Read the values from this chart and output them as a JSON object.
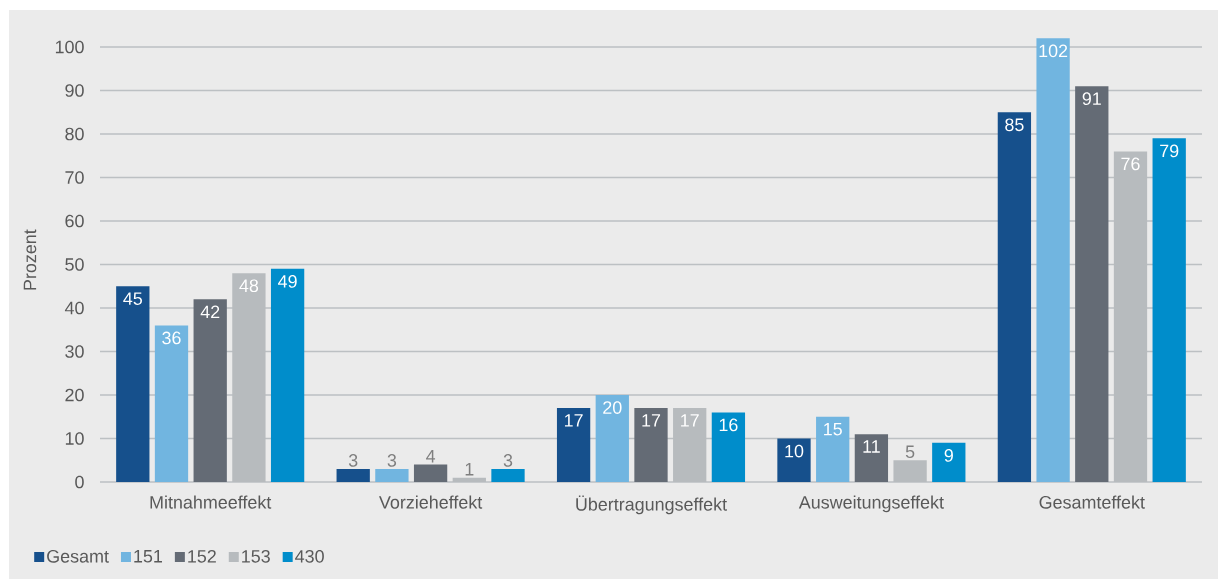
{
  "chart_data": {
    "type": "bar",
    "ylabel": "Prozent",
    "categories": [
      "Mitnahmeeffekt",
      "Vorzieheffekt",
      "Übertragungseffekt",
      "Ausweitungseffekt",
      "Gesamteffekt"
    ],
    "series": [
      {
        "name": "Gesamt",
        "color": "#16508c",
        "values": [
          45,
          3,
          17,
          10,
          85
        ]
      },
      {
        "name": "151",
        "color": "#71b5e0",
        "values": [
          36,
          3,
          20,
          15,
          102
        ]
      },
      {
        "name": "152",
        "color": "#646b75",
        "values": [
          42,
          4,
          17,
          11,
          91
        ]
      },
      {
        "name": "153",
        "color": "#b7bbbe",
        "values": [
          48,
          1,
          17,
          5,
          76
        ]
      },
      {
        "name": "430",
        "color": "#008dcb",
        "values": [
          49,
          3,
          16,
          9,
          79
        ]
      }
    ],
    "ylim": [
      0,
      102
    ],
    "yticks": [
      0,
      10,
      20,
      30,
      40,
      50,
      60,
      70,
      80,
      90,
      100
    ],
    "grid": "y",
    "legend": "bottom left",
    "data_labels": true
  }
}
